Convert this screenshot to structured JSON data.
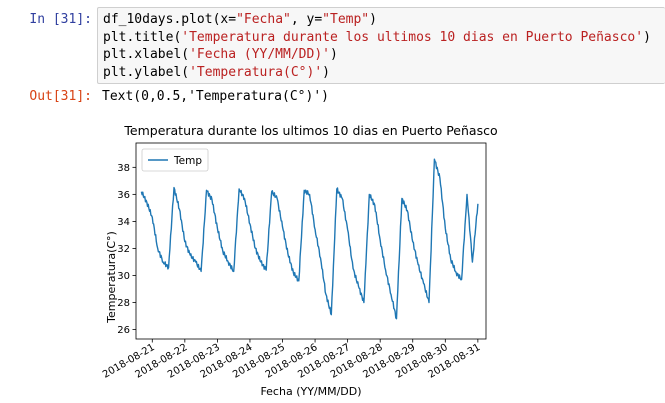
{
  "cells": {
    "input_prompt": "In [31]:",
    "output_prompt": "Out[31]:",
    "code": {
      "l1_pre": "df_10days.plot(x=",
      "l1_s1": "\"Fecha\"",
      "l1_mid": ", y=",
      "l1_s2": "\"Temp\"",
      "l1_post": ")",
      "l2_pre": "plt.title(",
      "l2_s": "'Temperatura durante los ultimos 10 dias en Puerto Peñasco'",
      "l2_post": ")",
      "l3_pre": "plt.xlabel(",
      "l3_s": "'Fecha (YY/MM/DD)'",
      "l3_post": ")",
      "l4_pre": "plt.ylabel(",
      "l4_s": "'Temperatura(C°)'",
      "l4_post": ")"
    },
    "output_text": "Text(0,0.5,'Temperatura(C°)')"
  },
  "chart_data": {
    "type": "line",
    "title": "Temperatura durante los ultimos 10 dias en Puerto Peñasco",
    "xlabel": "Fecha (YY/MM/DD)",
    "ylabel": "Temperatura(C°)",
    "legend": {
      "entries": [
        "Temp"
      ],
      "placement": "upper-left"
    },
    "grid": false,
    "line_color": "#1f77b4",
    "xlim": [
      "2018-08-20T12:00",
      "2018-08-31T06:00"
    ],
    "ylim": [
      25.3,
      39.8
    ],
    "x_ticks": [
      "2018-08-21",
      "2018-08-22",
      "2018-08-23",
      "2018-08-24",
      "2018-08-25",
      "2018-08-26",
      "2018-08-27",
      "2018-08-28",
      "2018-08-29",
      "2018-08-30",
      "2018-08-31"
    ],
    "y_ticks": [
      26,
      28,
      30,
      32,
      34,
      36,
      38
    ],
    "series": [
      {
        "name": "Temp",
        "x": [
          "2018-08-20T16:00",
          "2018-08-20T20:00",
          "2018-08-21T00:00",
          "2018-08-21T04:00",
          "2018-08-21T08:00",
          "2018-08-21T12:00",
          "2018-08-21T16:00",
          "2018-08-21T20:00",
          "2018-08-22T00:00",
          "2018-08-22T04:00",
          "2018-08-22T08:00",
          "2018-08-22T12:00",
          "2018-08-22T16:00",
          "2018-08-22T20:00",
          "2018-08-23T00:00",
          "2018-08-23T04:00",
          "2018-08-23T08:00",
          "2018-08-23T12:00",
          "2018-08-23T16:00",
          "2018-08-23T20:00",
          "2018-08-24T00:00",
          "2018-08-24T04:00",
          "2018-08-24T08:00",
          "2018-08-24T12:00",
          "2018-08-24T16:00",
          "2018-08-24T20:00",
          "2018-08-25T00:00",
          "2018-08-25T04:00",
          "2018-08-25T08:00",
          "2018-08-25T12:00",
          "2018-08-25T16:00",
          "2018-08-25T20:00",
          "2018-08-26T00:00",
          "2018-08-26T04:00",
          "2018-08-26T08:00",
          "2018-08-26T12:00",
          "2018-08-26T16:00",
          "2018-08-26T20:00",
          "2018-08-27T00:00",
          "2018-08-27T04:00",
          "2018-08-27T08:00",
          "2018-08-27T12:00",
          "2018-08-27T16:00",
          "2018-08-27T20:00",
          "2018-08-28T00:00",
          "2018-08-28T04:00",
          "2018-08-28T08:00",
          "2018-08-28T12:00",
          "2018-08-28T16:00",
          "2018-08-28T20:00",
          "2018-08-29T00:00",
          "2018-08-29T04:00",
          "2018-08-29T08:00",
          "2018-08-29T12:00",
          "2018-08-29T16:00",
          "2018-08-29T20:00",
          "2018-08-30T00:00",
          "2018-08-30T04:00",
          "2018-08-30T08:00",
          "2018-08-30T12:00",
          "2018-08-30T16:00",
          "2018-08-30T20:00",
          "2018-08-31T00:00"
        ],
        "values": [
          36.2,
          35.4,
          34.3,
          32.0,
          31.0,
          30.6,
          36.5,
          34.9,
          32.5,
          31.5,
          31.0,
          30.3,
          36.3,
          35.6,
          33.5,
          31.8,
          31.0,
          30.3,
          36.4,
          35.7,
          33.8,
          32.0,
          31.0,
          30.4,
          36.2,
          35.7,
          33.6,
          31.6,
          30.2,
          29.6,
          36.3,
          36.0,
          33.4,
          31.3,
          28.6,
          27.1,
          36.4,
          35.7,
          33.4,
          30.5,
          29.2,
          28.0,
          36.0,
          35.2,
          32.6,
          30.4,
          28.6,
          26.8,
          35.7,
          34.8,
          32.5,
          30.8,
          29.4,
          28.0,
          38.6,
          37.2,
          33.5,
          31.2,
          30.2,
          29.7,
          36.0,
          31.0,
          35.3
        ]
      }
    ]
  }
}
